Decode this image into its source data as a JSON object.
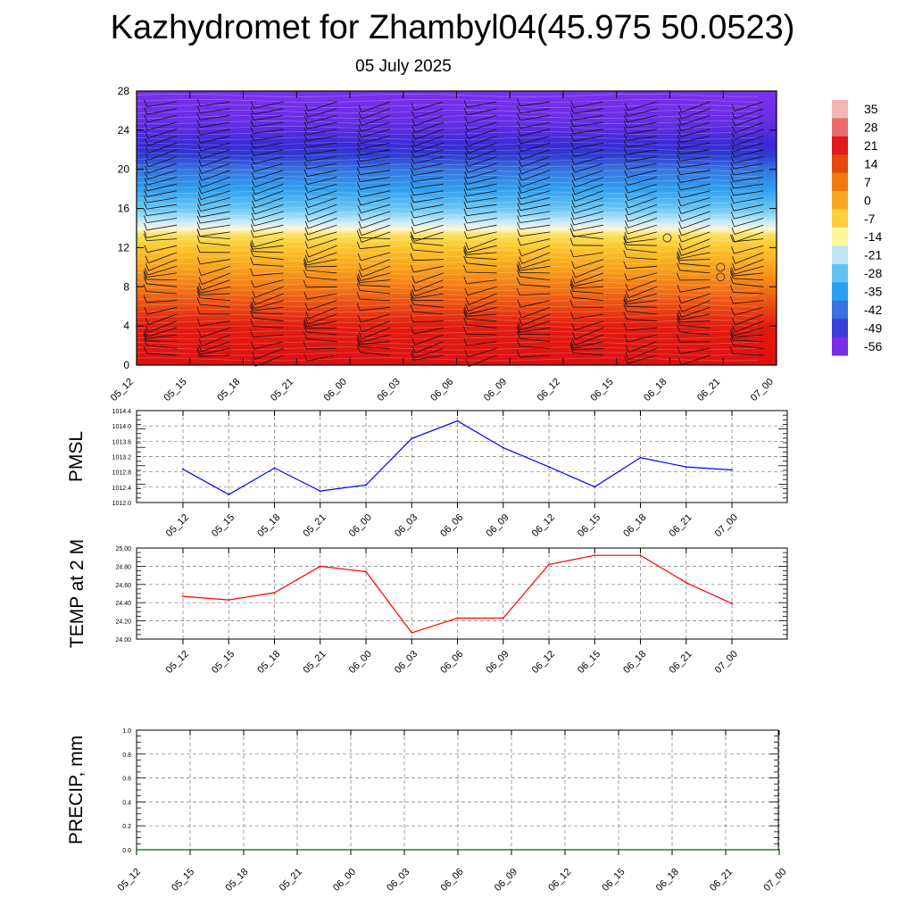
{
  "title": "Kazhydromet for Zhambyl04(45.975 50.0523)",
  "subtitle": "05 July 2025",
  "colors": {
    "pmsl_line": "#0000ff",
    "temp_line": "#ff0000",
    "precip_line": "#006400",
    "grid": "#000000"
  },
  "chart_data": [
    {
      "type": "heatmap",
      "name": "cross-section",
      "x": [
        "05_12",
        "05_15",
        "05_18",
        "05_21",
        "06_00",
        "06_03",
        "06_06",
        "06_09",
        "06_12",
        "06_15",
        "06_18",
        "06_21",
        "07_00"
      ],
      "yticks": [
        0,
        4,
        8,
        12,
        16,
        20,
        24,
        28
      ],
      "ylim": [
        0,
        28
      ],
      "colorbar_labels": [
        "35",
        "28",
        "21",
        "14",
        "7",
        "0",
        "-7",
        "-14",
        "-21",
        "-28",
        "-35",
        "-42",
        "-49",
        "-56"
      ],
      "colorbar_colors": [
        "#f2b6b6",
        "#ea6a6a",
        "#e01a1a",
        "#e64a10",
        "#f07a10",
        "#f7a820",
        "#fbd040",
        "#fdf8a0",
        "#bfe6f5",
        "#60c4f0",
        "#2a9ef0",
        "#3a70e0",
        "#3b3fd8",
        "#7b2ee8"
      ],
      "level_colors": [
        {
          "h": 0,
          "c": "#dd1010"
        },
        {
          "h": 4,
          "c": "#e21c10"
        },
        {
          "h": 6,
          "c": "#ea4a12"
        },
        {
          "h": 8,
          "c": "#f37a14"
        },
        {
          "h": 10,
          "c": "#f8a41c"
        },
        {
          "h": 12,
          "c": "#fbc62c"
        },
        {
          "h": 13.3,
          "c": "#fde05a"
        },
        {
          "h": 13.9,
          "c": "#fdf6d8"
        },
        {
          "h": 14.6,
          "c": "#c8eaf8"
        },
        {
          "h": 16,
          "c": "#68c6f2"
        },
        {
          "h": 18,
          "c": "#2f9eee"
        },
        {
          "h": 20,
          "c": "#3773e0"
        },
        {
          "h": 21.5,
          "c": "#2d3ad0"
        },
        {
          "h": 22.5,
          "c": "#3b2ad6"
        },
        {
          "h": 25,
          "c": "#6a2ee6"
        },
        {
          "h": 28,
          "c": "#7a30ee"
        }
      ]
    },
    {
      "type": "line",
      "name": "PMSL",
      "ylabel": "PMSL",
      "x": [
        "05_12",
        "05_15",
        "05_18",
        "05_21",
        "06_00",
        "06_03",
        "06_06",
        "06_09",
        "06_12",
        "06_15",
        "06_18",
        "06_21",
        "07_00"
      ],
      "values": [
        1012.87,
        1012.21,
        1012.9,
        1012.3,
        1012.46,
        1013.67,
        1014.13,
        1013.43,
        1012.93,
        1012.41,
        1013.17,
        1012.93,
        1012.85
      ],
      "ylim": [
        1012.0,
        1014.4
      ],
      "yticks": [
        "1012.0",
        "1012.4",
        "1012.8",
        "1013.2",
        "1013.6",
        "1014.0",
        "1014.4"
      ]
    },
    {
      "type": "line",
      "name": "TEMP",
      "ylabel": "TEMP at 2 M",
      "x": [
        "05_12",
        "05_15",
        "05_18",
        "05_21",
        "06_00",
        "06_03",
        "06_06",
        "06_09",
        "06_12",
        "06_15",
        "06_18",
        "06_21",
        "07_00"
      ],
      "values": [
        24.47,
        24.43,
        24.51,
        24.8,
        24.74,
        24.07,
        24.23,
        24.23,
        24.82,
        24.92,
        24.92,
        24.62,
        24.39
      ],
      "ylim": [
        24.0,
        25.0
      ],
      "yticks": [
        "24.00",
        "24.20",
        "24.40",
        "24.60",
        "24.80",
        "25.00"
      ]
    },
    {
      "type": "line",
      "name": "PRECIP",
      "ylabel": "PRECIP, mm",
      "x": [
        "05_12",
        "05_15",
        "05_18",
        "05_21",
        "06_00",
        "06_03",
        "06_06",
        "06_09",
        "06_12",
        "06_15",
        "06_18",
        "06_21",
        "07_00"
      ],
      "values": [
        0,
        0,
        0,
        0,
        0,
        0,
        0,
        0,
        0,
        0,
        0,
        0,
        0
      ],
      "ylim": [
        0.0,
        1.0
      ],
      "yticks": [
        "0.0",
        "0.2",
        "0.4",
        "0.6",
        "0.8",
        "1.0"
      ]
    }
  ]
}
